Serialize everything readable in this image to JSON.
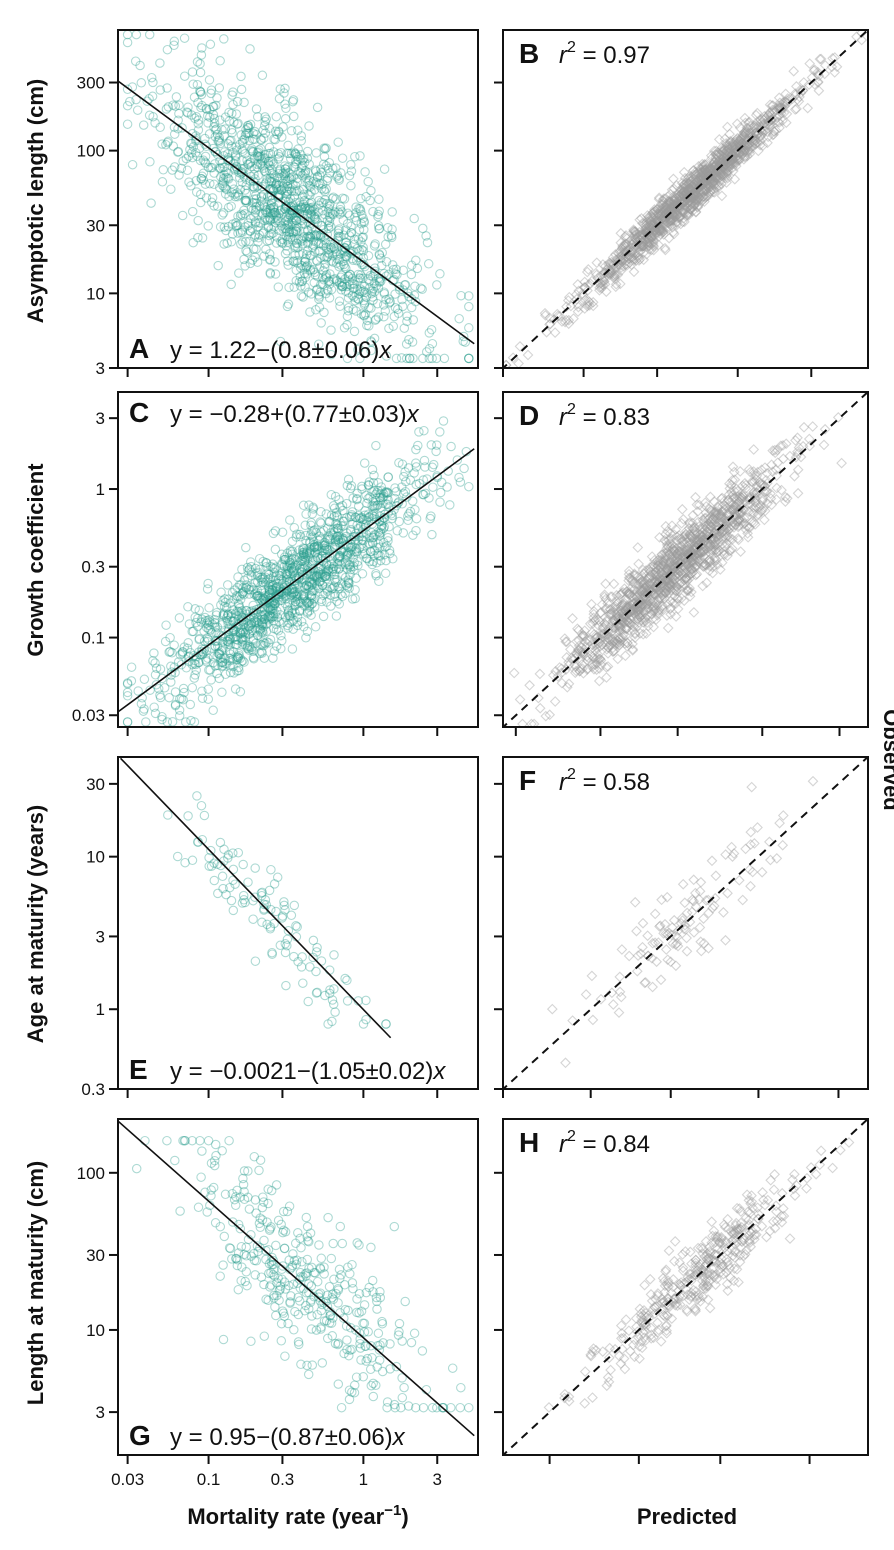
{
  "figure": {
    "x_axis_left_label": "Mortality rate (year",
    "x_axis_left_label_sup": "−1",
    "x_axis_left_label_end": ")",
    "x_axis_right_label": "Predicted",
    "right_axis_label": "Observed"
  },
  "colors": {
    "teal": "#2a9d8f",
    "gray": "#9a9a9a",
    "line": "#111111"
  },
  "chart_data": [
    {
      "panel": "A",
      "type": "scatter",
      "scale": "log-log",
      "ylabel": "Asymptotic length (cm)",
      "xlim": [
        0.026,
        5.5
      ],
      "ylim": [
        3,
        700
      ],
      "yticks": [
        3,
        10,
        30,
        100,
        300
      ],
      "ytick_labels": [
        "3",
        "10",
        "30",
        "100",
        "300"
      ],
      "xticks": [
        0.03,
        0.1,
        0.3,
        1,
        3
      ],
      "equation": {
        "prefix": "y = 1.22−(0.8±0.06)",
        "var": "x"
      },
      "fit": {
        "intercept": 1.22,
        "slope": -0.8,
        "x_range": [
          0.026,
          5.2
        ]
      },
      "cloud": {
        "n": 1300,
        "x_mean": -0.45,
        "x_sd": 0.42,
        "resid_sd": 0.3,
        "x_min": 0.03,
        "x_max": 4.8,
        "y_min": 3.5,
        "y_max": 650
      }
    },
    {
      "panel": "B",
      "type": "scatter",
      "scale": "log-log",
      "stat_label": "r",
      "stat_sup": "2",
      "stat_value": " = 0.97",
      "observed_vs_predicted": true,
      "lim": [
        3,
        700
      ],
      "cloud": {
        "n": 1300,
        "v_mean": 1.7,
        "v_sd": 0.35,
        "resid_sd": 0.07
      }
    },
    {
      "panel": "C",
      "type": "scatter",
      "scale": "log-log",
      "ylabel": "Growth coefficient",
      "xlim": [
        0.026,
        5.5
      ],
      "ylim": [
        0.025,
        4.5
      ],
      "yticks": [
        0.03,
        0.1,
        0.3,
        1,
        3
      ],
      "ytick_labels": [
        "0.03",
        "0.1",
        "0.3",
        "1",
        "3"
      ],
      "xticks": [
        0.03,
        0.1,
        0.3,
        1,
        3
      ],
      "equation": {
        "prefix": "y = −0.28+(0.77±0.03)",
        "var": "x"
      },
      "fit": {
        "intercept": -0.28,
        "slope": 0.77,
        "x_range": [
          0.026,
          5.2
        ]
      },
      "cloud": {
        "n": 1300,
        "x_mean": -0.45,
        "x_sd": 0.42,
        "resid_sd": 0.17,
        "x_min": 0.03,
        "x_max": 4.8,
        "y_min": 0.027,
        "y_max": 4
      }
    },
    {
      "panel": "D",
      "type": "scatter",
      "scale": "log-log",
      "stat_label": "r",
      "stat_sup": "2",
      "stat_value": " = 0.83",
      "observed_vs_predicted": true,
      "lim": [
        0.025,
        4.5
      ],
      "cloud": {
        "n": 1300,
        "v_mean": -0.55,
        "v_sd": 0.33,
        "resid_sd": 0.12
      }
    },
    {
      "panel": "E",
      "type": "scatter",
      "scale": "log-log",
      "ylabel": "Age at maturity (years)",
      "xlim": [
        0.026,
        5.5
      ],
      "ylim": [
        0.3,
        45
      ],
      "yticks": [
        0.3,
        1,
        3,
        10,
        30
      ],
      "ytick_labels": [
        "0.3",
        "1",
        "3",
        "10",
        "30"
      ],
      "xticks": [
        0.03,
        0.1,
        0.3,
        1,
        3
      ],
      "equation": {
        "prefix": "y = −0.0021−(1.05±0.02)",
        "var": "x"
      },
      "fit": {
        "intercept": -0.0021,
        "slope": -1.05,
        "x_range": [
          0.027,
          1.5
        ]
      },
      "cloud": {
        "n": 120,
        "x_mean": -0.6,
        "x_sd": 0.3,
        "resid_sd": 0.14,
        "x_min": 0.03,
        "x_max": 1.4,
        "y_min": 0.8,
        "y_max": 25
      }
    },
    {
      "panel": "F",
      "type": "scatter",
      "scale": "log-log",
      "stat_label": "r",
      "stat_sup": "2",
      "stat_value": " = 0.58",
      "observed_vs_predicted": true,
      "lim": [
        0.3,
        45
      ],
      "cloud": {
        "n": 120,
        "v_mean": 0.55,
        "v_sd": 0.32,
        "resid_sd": 0.16
      }
    },
    {
      "panel": "G",
      "type": "scatter",
      "scale": "log-log",
      "ylabel": "Length at maturity (cm)",
      "xlim": [
        0.026,
        5.5
      ],
      "ylim": [
        1.6,
        220
      ],
      "yticks": [
        3,
        10,
        30,
        100
      ],
      "ytick_labels": [
        "3",
        "10",
        "30",
        "100"
      ],
      "xticks": [
        0.03,
        0.1,
        0.3,
        1,
        3
      ],
      "xtick_labels": [
        "0.03",
        "0.1",
        "0.3",
        "1",
        "3"
      ],
      "equation": {
        "prefix": "y = 0.95−(0.87±0.06)",
        "var": "x"
      },
      "fit": {
        "intercept": 0.95,
        "slope": -0.87,
        "x_range": [
          0.026,
          5.2
        ]
      },
      "cloud": {
        "n": 380,
        "x_mean": -0.4,
        "x_sd": 0.4,
        "resid_sd": 0.25,
        "x_min": 0.03,
        "x_max": 4.8,
        "y_min": 3.2,
        "y_max": 160
      }
    },
    {
      "panel": "H",
      "type": "scatter",
      "scale": "log-log",
      "stat_label": "r",
      "stat_sup": "2",
      "stat_value": " = 0.84",
      "observed_vs_predicted": true,
      "lim": [
        1.6,
        220
      ],
      "cloud": {
        "n": 380,
        "v_mean": 1.35,
        "v_sd": 0.3,
        "resid_sd": 0.11
      }
    }
  ]
}
